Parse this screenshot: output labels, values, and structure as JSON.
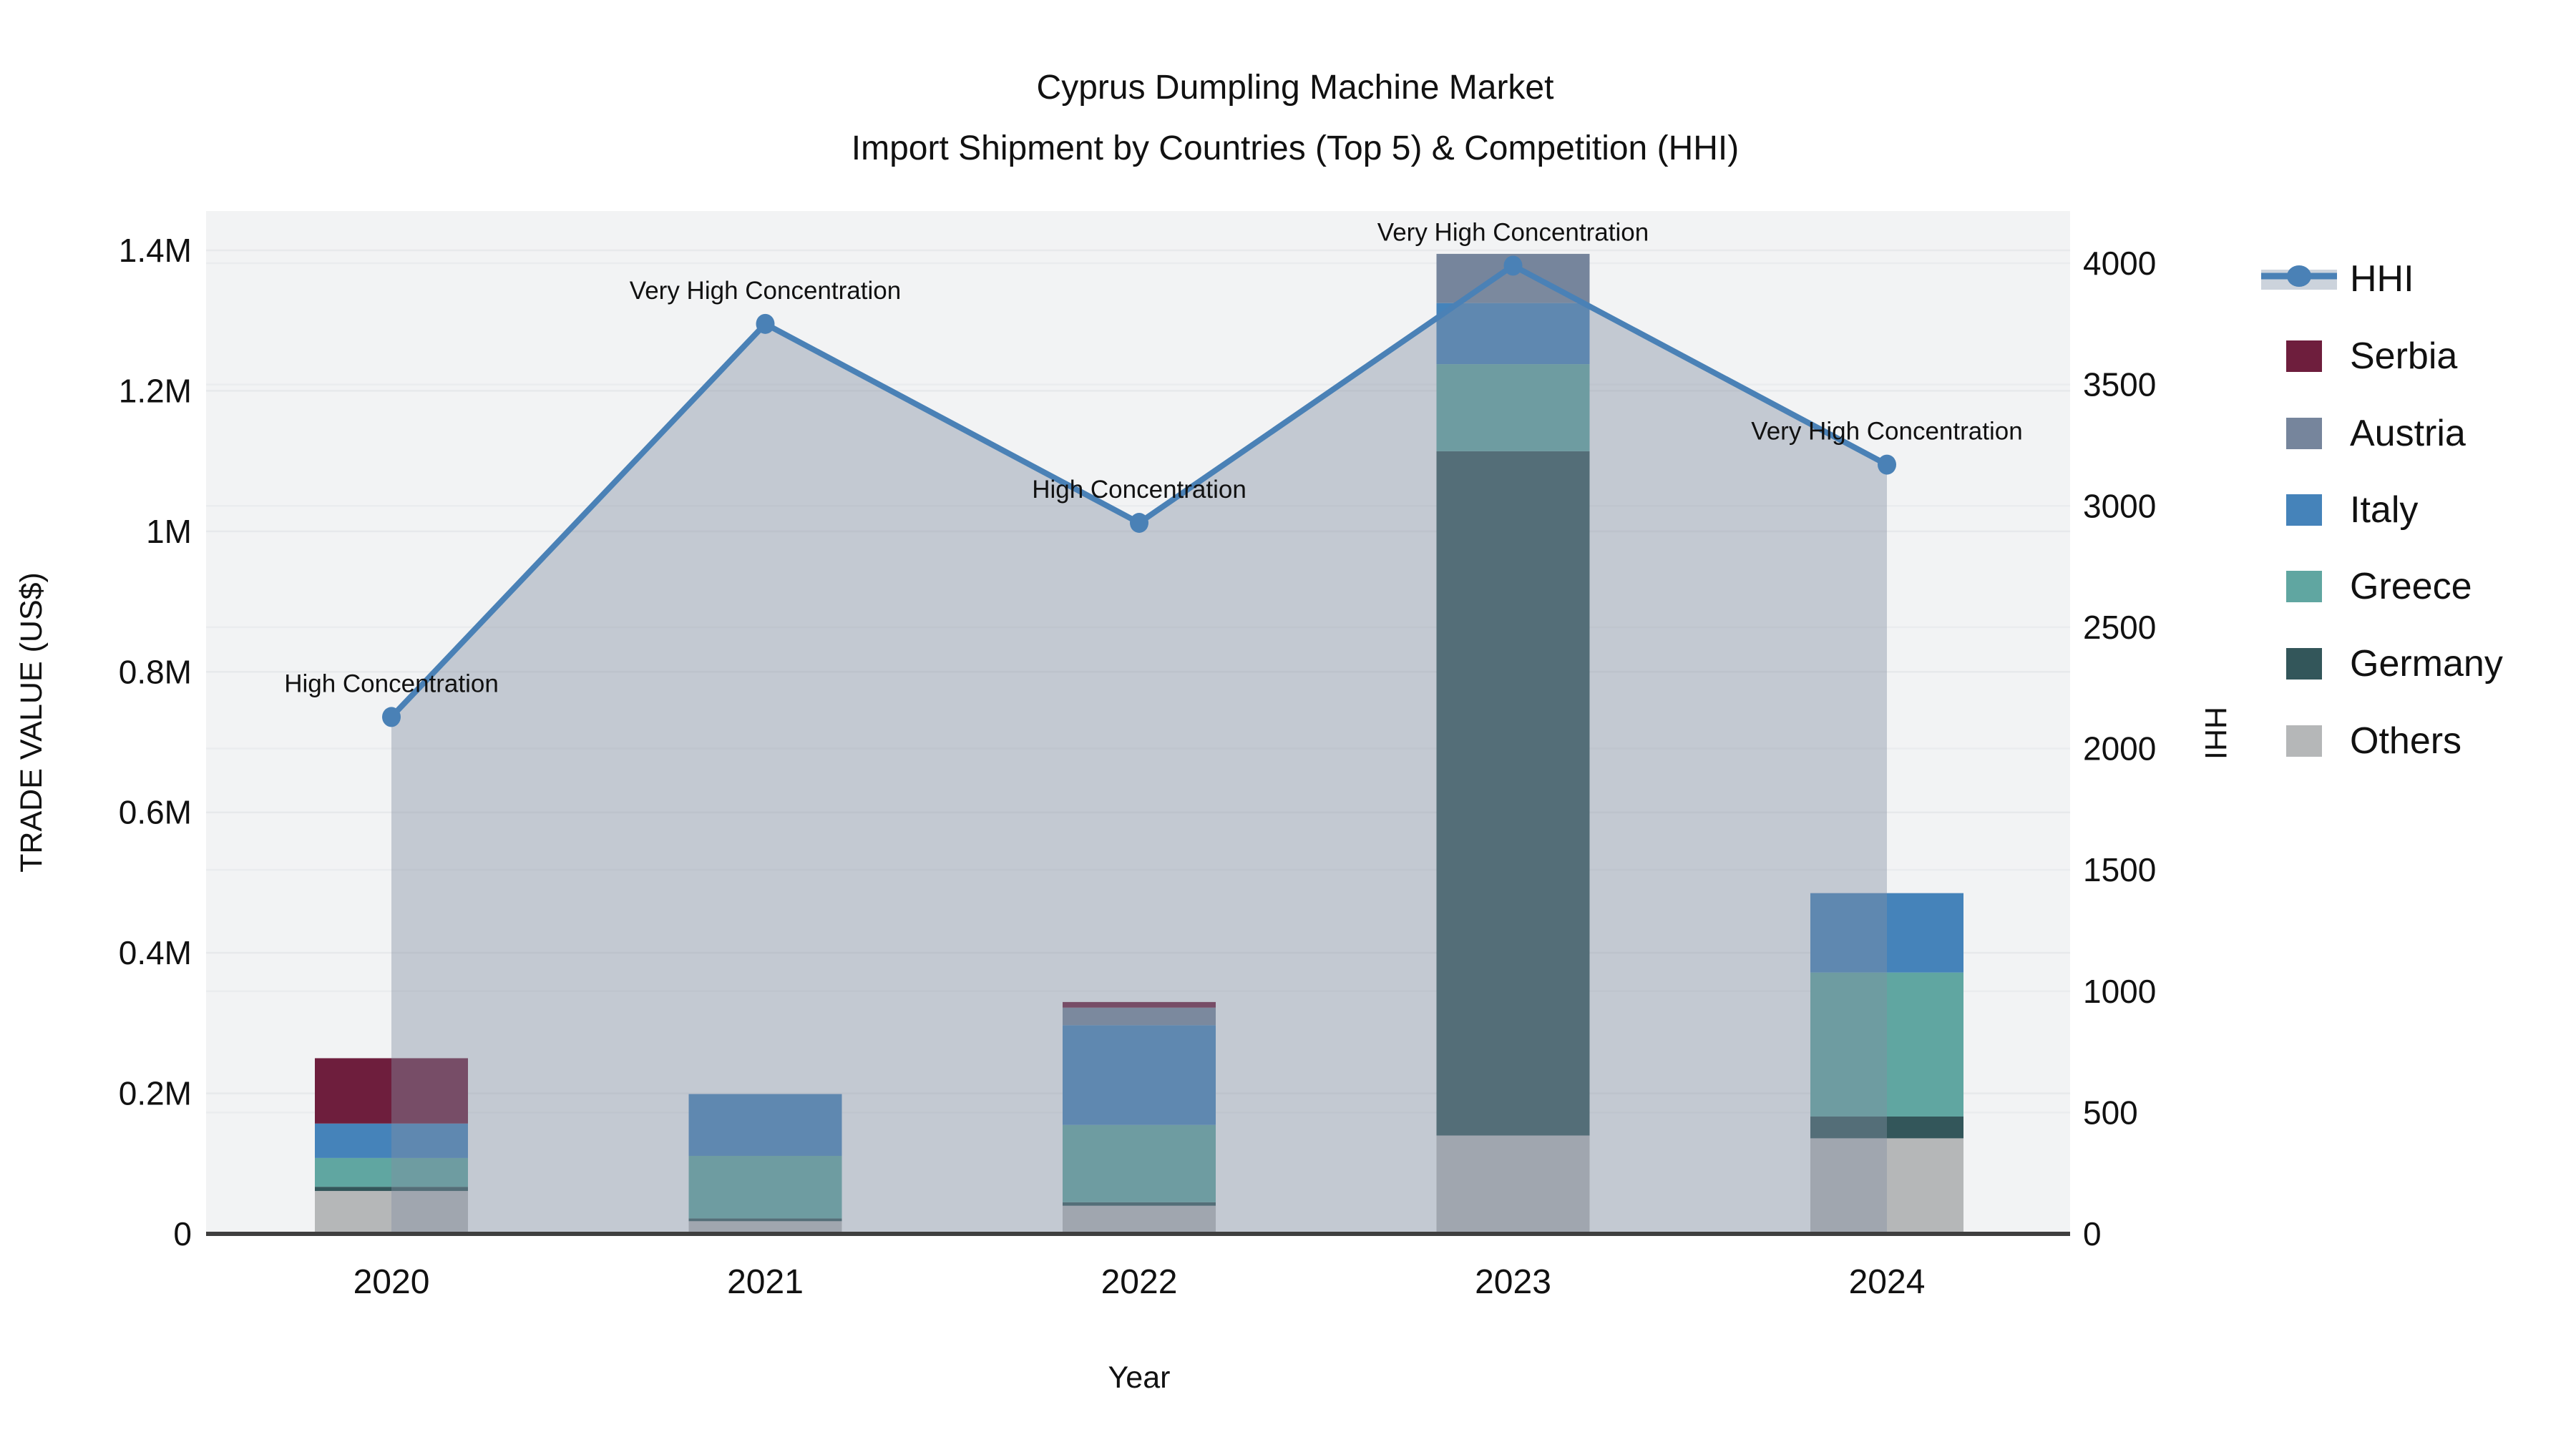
{
  "title": {
    "line1": "Cyprus Dumpling Machine Market",
    "line2": "Import Shipment by Countries (Top 5) & Competition (HHI)"
  },
  "colors": {
    "background": "#ffffff",
    "plot_bg": "#f2f3f4",
    "grid_value": "#e7e9eb",
    "grid_hhi": "#eaecee",
    "axis_line": "#3f3f3f",
    "text": "#111111",
    "hhi_line": "#4a81b6",
    "hhi_area_fill": "rgba(130,143,163,0.42)",
    "legend_hhi_band": "#ccd3dc"
  },
  "chart_data": {
    "type": "stacked-bar+line",
    "categories": [
      "2020",
      "2021",
      "2022",
      "2023",
      "2024"
    ],
    "bar_series": [
      {
        "name": "Serbia",
        "color": "#6e1e3d",
        "values": [
          93000,
          0,
          8000,
          0,
          0
        ]
      },
      {
        "name": "Austria",
        "color": "#76859c",
        "values": [
          0,
          0,
          25000,
          70000,
          0
        ]
      },
      {
        "name": "Italy",
        "color": "#4583ba",
        "values": [
          49000,
          88000,
          142000,
          87000,
          113000
        ]
      },
      {
        "name": "Greece",
        "color": "#60a6a1",
        "values": [
          41000,
          89000,
          110000,
          124000,
          205000
        ]
      },
      {
        "name": "Germany",
        "color": "#33565a",
        "values": [
          6000,
          4000,
          5000,
          974000,
          31000
        ]
      },
      {
        "name": "Others",
        "color": "#b5b7b8",
        "values": [
          61000,
          18000,
          40000,
          140000,
          136000
        ]
      }
    ],
    "stack_note": "bars stacked bottom-to-top as Others, Germany, Greece, Italy, Austria, Serbia",
    "line_series": {
      "name": "HHI",
      "values": [
        2130,
        3750,
        2930,
        3990,
        3170
      ]
    },
    "annotations": [
      "High Concentration",
      "Very High Concentration",
      "High Concentration",
      "Very High Concentration",
      "Very High Concentration"
    ],
    "left_axis": {
      "label": "TRADE VALUE (US$)",
      "tick_labels": [
        "0",
        "0.2M",
        "0.4M",
        "0.6M",
        "0.8M",
        "1M",
        "1.2M",
        "1.4M"
      ],
      "tick_values": [
        0,
        200000,
        400000,
        600000,
        800000,
        1000000,
        1200000,
        1400000
      ],
      "max": 1400000
    },
    "right_axis": {
      "label": "HHI",
      "tick_labels": [
        "0",
        "500",
        "1000",
        "1500",
        "2000",
        "2500",
        "3000",
        "3500",
        "4000"
      ],
      "tick_values": [
        0,
        500,
        1000,
        1500,
        2000,
        2500,
        3000,
        3500,
        4000
      ],
      "max": 4000
    },
    "x_axis": {
      "label": "Year"
    },
    "legend": {
      "items": [
        "HHI",
        "Serbia",
        "Austria",
        "Italy",
        "Greece",
        "Germany",
        "Others"
      ]
    },
    "grid": true,
    "legend_position": "right"
  }
}
